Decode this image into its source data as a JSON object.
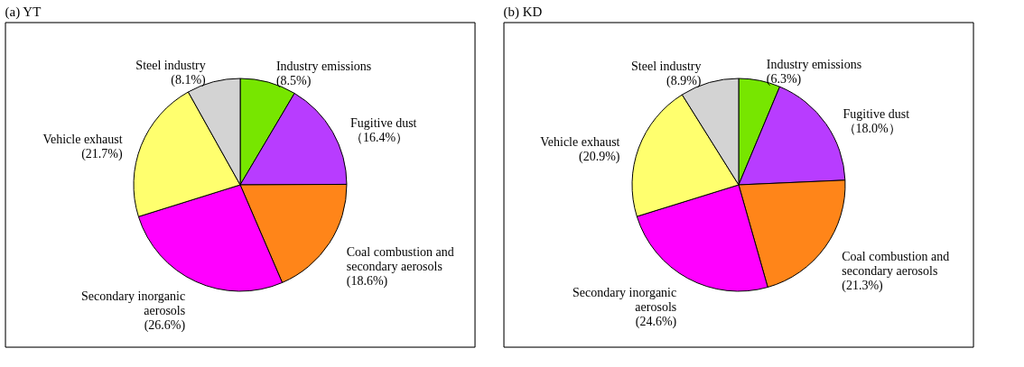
{
  "chart_data": [
    {
      "type": "pie",
      "title": "(a) YT",
      "categories": [
        "Industry emissions",
        "Fugitive dust",
        "Coal combustion and secondary aerosols",
        "Secondary inorganic aerosols",
        "Vehicle exhaust",
        "Steel industry"
      ],
      "values": [
        8.5,
        16.4,
        18.6,
        26.6,
        21.7,
        8.1
      ],
      "value_labels": [
        "(8.5%)",
        "（16.4%）",
        "(18.6%)",
        "(26.6%)",
        "(21.7%)",
        "(8.1%)"
      ],
      "colors": [
        "#77e600",
        "#b83cff",
        "#ff8519",
        "#ff00ff",
        "#ffff6e",
        "#d3d3d3"
      ]
    },
    {
      "type": "pie",
      "title": "(b) KD",
      "categories": [
        "Industry emissions",
        "Fugitive dust",
        "Coal combustion and secondary aerosols",
        "Secondary inorganic aerosols",
        "Vehicle exhaust",
        "Steel industry"
      ],
      "values": [
        6.3,
        18.0,
        21.3,
        24.6,
        20.9,
        8.9
      ],
      "value_labels": [
        "(6.3%)",
        "（18.0%）",
        "(21.3%)",
        "(24.6%)",
        "(20.9%)",
        "(8.9%)"
      ],
      "colors": [
        "#77e600",
        "#b83cff",
        "#ff8519",
        "#ff00ff",
        "#ffff6e",
        "#d3d3d3"
      ]
    }
  ]
}
